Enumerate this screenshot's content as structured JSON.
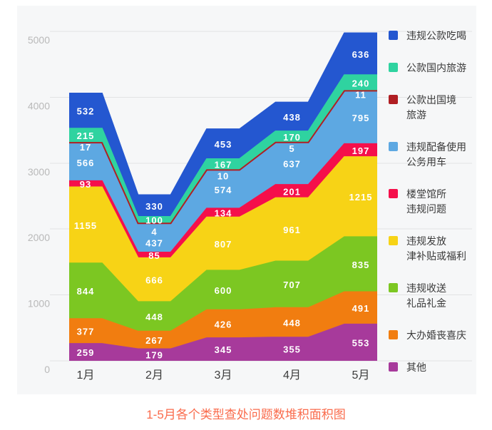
{
  "chart_data": {
    "type": "area",
    "stacked": true,
    "series_order": "top-of-stack-first",
    "title": "1-5月各个类型查处问题数堆积面积图",
    "title_color": "#fa6b4c",
    "categories": [
      "1月",
      "2月",
      "3月",
      "4月",
      "5月"
    ],
    "xlabel": "",
    "ylabel": "",
    "ylim": [
      0,
      5000
    ],
    "yticks": [
      0,
      1000,
      2000,
      3000,
      4000,
      5000
    ],
    "grid": true,
    "legend_position": "right",
    "value_label_color": "#ffffff",
    "series": [
      {
        "name": "违规公款吃喝",
        "legend_label": "违规公款吃喝",
        "color": "#2457d0",
        "values": [
          532,
          330,
          453,
          438,
          636
        ]
      },
      {
        "name": "公款国内旅游",
        "legend_label": "公款国内旅游",
        "color": "#2fd3a0",
        "values": [
          215,
          100,
          167,
          170,
          240
        ]
      },
      {
        "name": "公款出国境旅游",
        "legend_label": "公款出国境\n旅游",
        "color": "#b01e23",
        "values": [
          17,
          4,
          10,
          5,
          11
        ]
      },
      {
        "name": "违规配备使用公务用车",
        "legend_label": "违规配备使用\n公务用车",
        "color": "#5da8e2",
        "values": [
          566,
          437,
          574,
          637,
          795
        ]
      },
      {
        "name": "楼堂馆所违规问题",
        "legend_label": "楼堂馆所\n违规问题",
        "color": "#f50f4b",
        "values": [
          93,
          85,
          134,
          201,
          197
        ]
      },
      {
        "name": "违规发放津补贴或福利",
        "legend_label": "违规发放\n津补贴或福利",
        "color": "#f7d316",
        "values": [
          1155,
          666,
          807,
          961,
          1215
        ]
      },
      {
        "name": "违规收送礼品礼金",
        "legend_label": "违规收送\n礼品礼金",
        "color": "#7cc722",
        "values": [
          844,
          448,
          600,
          707,
          835
        ]
      },
      {
        "name": "大办婚丧喜庆",
        "legend_label": "大办婚丧喜庆",
        "color": "#f17d10",
        "values": [
          377,
          267,
          426,
          448,
          491
        ]
      },
      {
        "name": "其他",
        "legend_label": "其他",
        "color": "#a73a9b",
        "values": [
          259,
          179,
          345,
          355,
          553
        ]
      }
    ],
    "style": {
      "panel_bg": "#f6f7f8",
      "grid_color": "#e2e3e4",
      "y_tick_color": "#b9b9b9",
      "x_tick_color": "#3c3c3c"
    }
  }
}
